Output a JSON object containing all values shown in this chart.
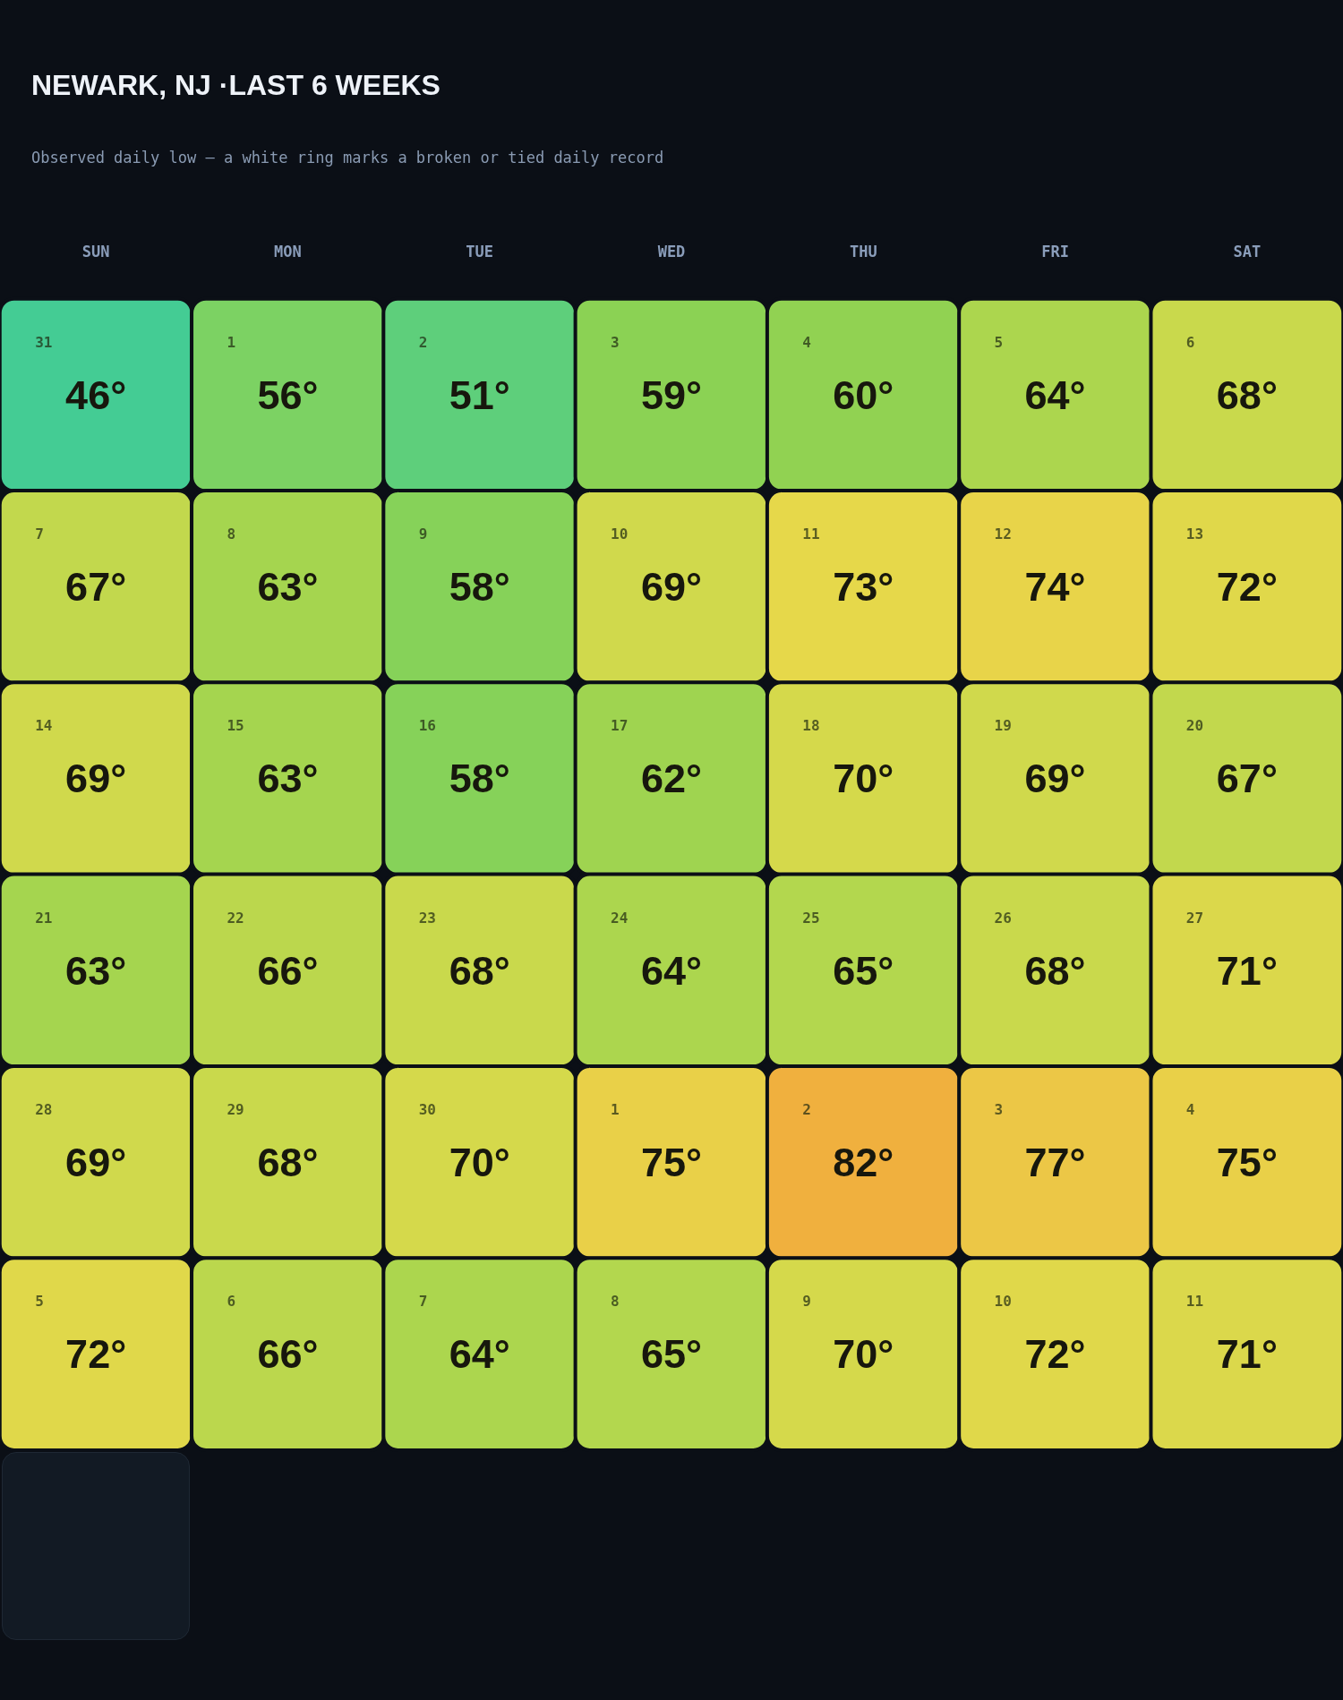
{
  "chart_data": {
    "type": "heatmap",
    "title": "NEWARK, NJ ·LAST 6 WEEKS",
    "subtitle": "Observed daily low — a white ring marks a broken or tied daily record",
    "categories": [
      "SUN",
      "MON",
      "TUE",
      "WED",
      "THU",
      "FRI",
      "SAT"
    ],
    "y_categories": [
      null,
      null,
      null,
      null,
      null,
      null
    ],
    "cells": [
      [
        46,
        56,
        51,
        59,
        60,
        64,
        68
      ],
      [
        67,
        63,
        58,
        69,
        73,
        74,
        72
      ],
      [
        69,
        63,
        58,
        62,
        70,
        69,
        67
      ],
      [
        63,
        66,
        68,
        64,
        65,
        68,
        71
      ],
      [
        69,
        68,
        70,
        75,
        82,
        77,
        75
      ],
      [
        72,
        66,
        64,
        65,
        70,
        72,
        71
      ]
    ],
    "cell_labels": [
      [
        "46°",
        "56°",
        "51°",
        "59°",
        "60°",
        "64°",
        "68°"
      ],
      [
        "67°",
        "63°",
        "58°",
        "69°",
        "73°",
        "74°",
        "72°"
      ],
      [
        "69°",
        "63°",
        "58°",
        "62°",
        "70°",
        "69°",
        "67°"
      ],
      [
        "63°",
        "66°",
        "68°",
        "64°",
        "65°",
        "68°",
        "71°"
      ],
      [
        "69°",
        "68°",
        "70°",
        "75°",
        "82°",
        "77°",
        "75°"
      ],
      [
        "72°",
        "66°",
        "64°",
        "65°",
        "70°",
        "72°",
        "71°"
      ]
    ],
    "annotations": [
      "31",
      "1",
      "2",
      "3",
      "4",
      "5",
      "6",
      "7",
      "8",
      "9",
      "10",
      "11",
      "12",
      "13",
      "14",
      "15",
      "16",
      "17",
      "18",
      "19",
      "20",
      "21",
      "22",
      "23",
      "24",
      "25",
      "26",
      "27",
      "28",
      "29",
      "30",
      "1",
      "2",
      "3",
      "4",
      "5",
      "6",
      "7",
      "8",
      "9",
      "10",
      "11"
    ]
  }
}
